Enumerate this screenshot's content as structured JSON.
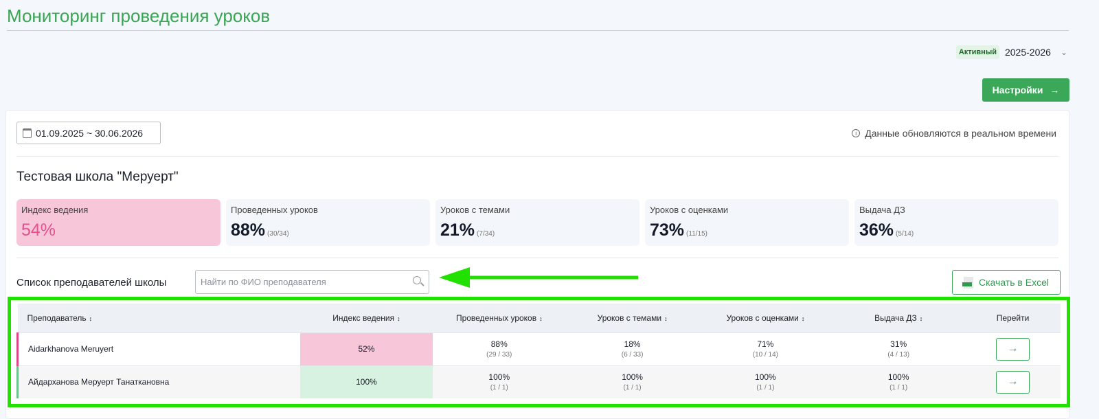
{
  "page_title": "Мониторинг проведения уроков",
  "year_selector": {
    "badge": "Активный",
    "year": "2025-2026"
  },
  "settings_label": "Настройки",
  "date_range": "01.09.2025 ~ 30.06.2026",
  "realtime_note": "Данные обновляются в реальном времени",
  "school_name": "Тестовая школа \"Меруерт\"",
  "stats": [
    {
      "label": "Индекс ведения",
      "value": "54%",
      "sub": ""
    },
    {
      "label": "Проведенных уроков",
      "value": "88%",
      "sub": "(30/34)"
    },
    {
      "label": "Уроков с темами",
      "value": "21%",
      "sub": "(7/34)"
    },
    {
      "label": "Уроков с оценками",
      "value": "73%",
      "sub": "(11/15)"
    },
    {
      "label": "Выдача ДЗ",
      "value": "36%",
      "sub": "(5/14)"
    }
  ],
  "list_label": "Список преподавателей школы",
  "search_placeholder": "Найти по ФИО преподавателя",
  "excel_label": "Скачать в Excel",
  "table": {
    "headers": [
      "Преподаватель",
      "Индекс ведения",
      "Проведенных уроков",
      "Уроков с темами",
      "Уроков с оценками",
      "Выдача ДЗ",
      "Перейти"
    ],
    "rows": [
      {
        "name": "Aidarkhanova Meruyert",
        "index": "52%",
        "lessons": [
          "88%",
          "(29 / 33)"
        ],
        "topics": [
          "18%",
          "(6 / 33)"
        ],
        "grades": [
          "71%",
          "(10 / 14)"
        ],
        "hw": [
          "31%",
          "(4 / 13)"
        ]
      },
      {
        "name": "Айдарханова Меруерт Танаткановна",
        "index": "100%",
        "lessons": [
          "100%",
          "(1 / 1)"
        ],
        "topics": [
          "100%",
          "(1 / 1)"
        ],
        "grades": [
          "100%",
          "(1 / 1)"
        ],
        "hw": [
          "100%",
          "(1 / 1)"
        ]
      }
    ]
  },
  "colors": {
    "accent": "#3aa858",
    "pink": "#f7c6d9",
    "highlight": "#22e000"
  }
}
